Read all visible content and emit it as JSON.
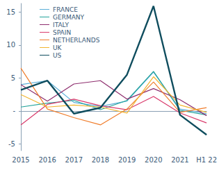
{
  "chart_data": {
    "type": "line",
    "categories": [
      "2015",
      "2016",
      "2017",
      "2018",
      "2019",
      "2020",
      "2021",
      "H1 22"
    ],
    "series": [
      {
        "name": "FRANCE",
        "color": "#5aaed8",
        "values": [
          4.0,
          4.6,
          1.3,
          0.7,
          1.5,
          5.9,
          0.3,
          -0.4
        ]
      },
      {
        "name": "GERMANY",
        "color": "#22a39a",
        "values": [
          0.6,
          1.2,
          1.6,
          0.2,
          1.6,
          6.0,
          0.1,
          -0.6
        ]
      },
      {
        "name": "ITALY",
        "color": "#8e2e6e",
        "values": [
          4.0,
          1.5,
          4.1,
          4.6,
          1.8,
          3.4,
          1.7,
          -0.7
        ]
      },
      {
        "name": "SPAIN",
        "color": "#d93a6b",
        "values": [
          -2.1,
          1.0,
          1.8,
          0.8,
          0.2,
          2.2,
          -0.3,
          -1.8
        ]
      },
      {
        "name": "NETHERLANDS",
        "color": "#f07d2b",
        "values": [
          6.5,
          0.3,
          -1.0,
          -2.1,
          0.3,
          4.4,
          -0.2,
          0.5
        ]
      },
      {
        "name": "UK",
        "color": "#f2b530",
        "values": [
          2.5,
          0.6,
          0.9,
          0.6,
          -0.3,
          5.2,
          0.9,
          -0.2
        ]
      },
      {
        "name": "US",
        "color": "#0f4d5e",
        "values": [
          3.2,
          4.6,
          -0.4,
          0.5,
          5.5,
          15.9,
          -0.6,
          -3.6
        ]
      }
    ],
    "ylim": [
      -6,
      16.3
    ],
    "yticks": [
      -5,
      {
        "value": 0,
        "label": "-"
      },
      5,
      10,
      15
    ],
    "grid": false,
    "legend": "top-left"
  }
}
